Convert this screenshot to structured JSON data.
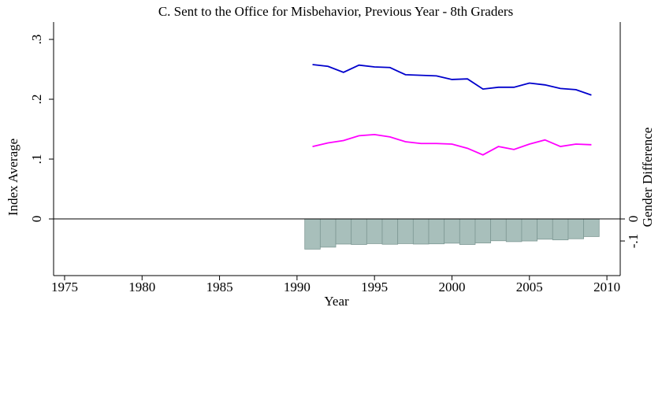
{
  "chart_data": {
    "type": "line-bar",
    "title": "C. Sent to the Office for Misbehavior, Previous Year - 8th Graders",
    "x_label": "Year",
    "y_label": "Index Average",
    "y2_label": "Gender Difference",
    "x": [
      1991,
      1992,
      1993,
      1994,
      1995,
      1996,
      1997,
      1998,
      1999,
      2000,
      2001,
      2002,
      2003,
      2004,
      2005,
      2006,
      2007,
      2008,
      2009
    ],
    "series": [
      {
        "type": "line",
        "color": "#0000cc",
        "values": [
          0.258,
          0.255,
          0.245,
          0.257,
          0.254,
          0.253,
          0.241,
          0.24,
          0.239,
          0.233,
          0.234,
          0.217,
          0.22,
          0.22,
          0.227,
          0.224,
          0.218,
          0.216,
          0.207
        ]
      },
      {
        "type": "line",
        "color": "#ff00ff",
        "values": [
          0.121,
          0.127,
          0.131,
          0.139,
          0.141,
          0.137,
          0.129,
          0.126,
          0.126,
          0.125,
          0.118,
          0.107,
          0.121,
          0.116,
          0.125,
          0.132,
          0.121,
          0.125,
          0.124
        ]
      },
      {
        "type": "bar",
        "axis": "y2",
        "color": "#a8bfbb",
        "values": [
          -0.137,
          -0.128,
          -0.114,
          -0.116,
          -0.112,
          -0.115,
          -0.112,
          -0.114,
          -0.113,
          -0.11,
          -0.116,
          -0.109,
          -0.099,
          -0.103,
          -0.1,
          -0.092,
          -0.095,
          -0.09,
          -0.08
        ]
      }
    ],
    "xlim": [
      1974.29,
      2010.86
    ],
    "xticks": [
      1975,
      1980,
      1985,
      1990,
      1995,
      2000,
      2005,
      2010
    ],
    "ylim": [
      -0.0947,
      0.329
    ],
    "yticks": [
      0,
      {
        "value": 0.1,
        "label": ".1"
      },
      {
        "value": 0.2,
        "label": ".2"
      },
      {
        "value": 0.3,
        "label": ".3"
      }
    ],
    "y2lim": [
      -0.257,
      0.893
    ],
    "y2ticks": [
      0,
      {
        "value": -0.1,
        "label": "-.1"
      }
    ]
  }
}
